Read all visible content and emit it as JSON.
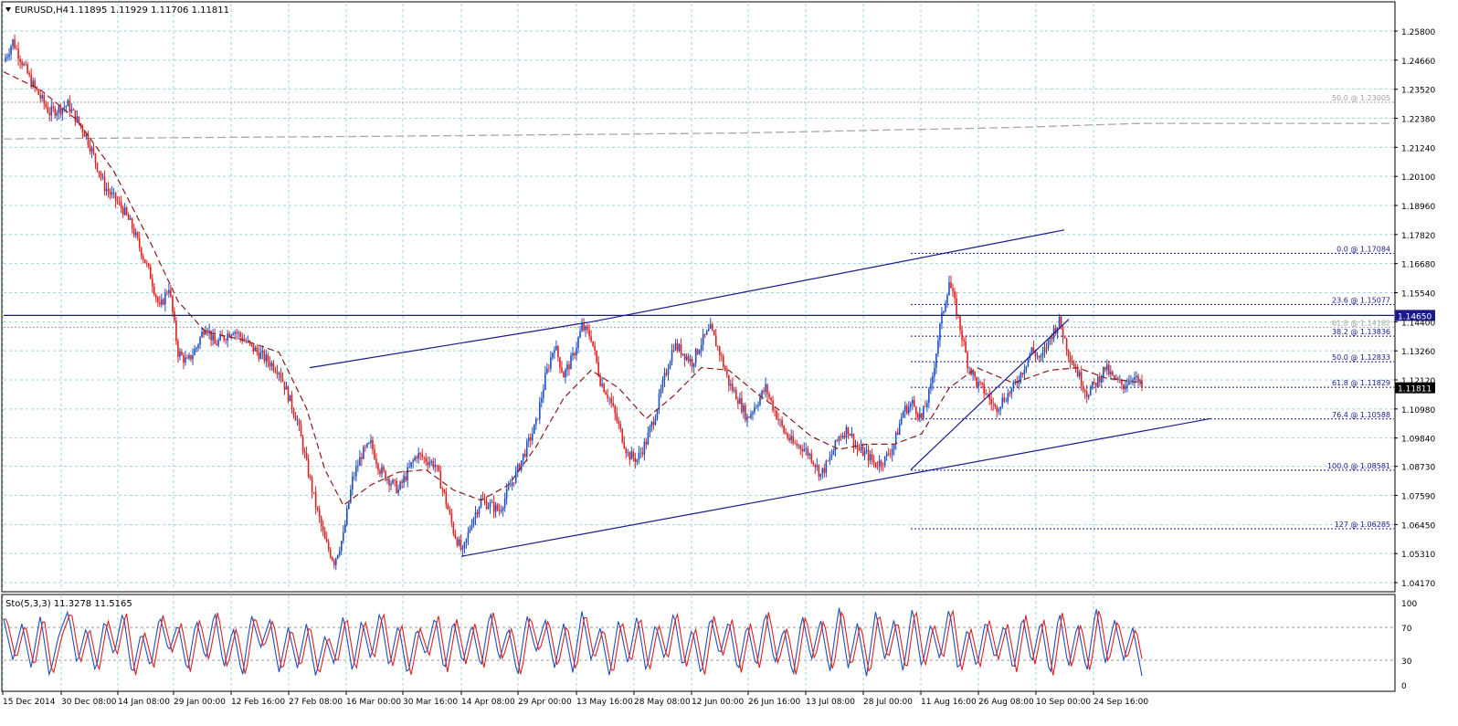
{
  "header": {
    "symbol": "EURUSD,H4",
    "ohlc": "1.11895 1.11929 1.11706 1.11811"
  },
  "indicator": {
    "label": "Sto(5,3,3) 11.3278 11.5165",
    "levels": [
      "100",
      "70",
      "30",
      "0"
    ]
  },
  "colors": {
    "background": "#ffffff",
    "grid": "#9fd4dc",
    "axis": "#000000",
    "bull": "#1f4fbf",
    "bear": "#e02020",
    "ma": "#8b1a1a",
    "trendline": "#1a1a8c",
    "fib": "#1a1a8c",
    "fib_grey": "#a0a0a0",
    "price_label_bg": "#000000",
    "resistance_label_bg": "#1a1a8c"
  },
  "chart_data": {
    "type": "candlestick",
    "title": "EURUSD,H4",
    "ylim": [
      1.0417,
      1.258
    ],
    "y_ticks": [
      "1.25800",
      "1.24660",
      "1.23520",
      "1.22380",
      "1.21240",
      "1.20100",
      "1.18960",
      "1.17820",
      "1.16680",
      "1.15540",
      "1.14400",
      "1.13260",
      "1.12120",
      "1.10980",
      "1.09840",
      "1.08730",
      "1.07590",
      "1.06450",
      "1.05310",
      "1.04170"
    ],
    "x_ticks": [
      "15 Dec 2014",
      "30 Dec 08:00",
      "14 Jan 08:00",
      "29 Jan 00:00",
      "12 Feb 16:00",
      "27 Feb 08:00",
      "16 Mar 00:00",
      "30 Mar 16:00",
      "14 Apr 08:00",
      "29 Apr 00:00",
      "13 May 16:00",
      "28 May 08:00",
      "12 Jun 00:00",
      "26 Jun 16:00",
      "13 Jul 08:00",
      "28 Jul 00:00",
      "11 Aug 16:00",
      "26 Aug 08:00",
      "10 Sep 00:00",
      "24 Sep 16:00"
    ],
    "current_price": "1.11811",
    "resistance_level": "1.14650",
    "price_path": [
      [
        0,
        1.246
      ],
      [
        1,
        1.254
      ],
      [
        3,
        1.238
      ],
      [
        5,
        1.226
      ],
      [
        7,
        1.229
      ],
      [
        9,
        1.217
      ],
      [
        11,
        1.197
      ],
      [
        13,
        1.188
      ],
      [
        14,
        1.181
      ],
      [
        16,
        1.162
      ],
      [
        17,
        1.149
      ],
      [
        18,
        1.158
      ],
      [
        19,
        1.132
      ],
      [
        20,
        1.128
      ],
      [
        21,
        1.134
      ],
      [
        22,
        1.143
      ],
      [
        23,
        1.135
      ],
      [
        25,
        1.141
      ],
      [
        27,
        1.134
      ],
      [
        29,
        1.128
      ],
      [
        30,
        1.125
      ],
      [
        31,
        1.115
      ],
      [
        32,
        1.105
      ],
      [
        33,
        1.088
      ],
      [
        34,
        1.072
      ],
      [
        35,
        1.058
      ],
      [
        36,
        1.05
      ],
      [
        37,
        1.06
      ],
      [
        38,
        1.082
      ],
      [
        39,
        1.092
      ],
      [
        40,
        1.096
      ],
      [
        41,
        1.086
      ],
      [
        43,
        1.078
      ],
      [
        45,
        1.092
      ],
      [
        47,
        1.088
      ],
      [
        48,
        1.076
      ],
      [
        49,
        1.062
      ],
      [
        50,
        1.053
      ],
      [
        51,
        1.066
      ],
      [
        52,
        1.074
      ],
      [
        54,
        1.07
      ],
      [
        56,
        1.086
      ],
      [
        58,
        1.104
      ],
      [
        59,
        1.122
      ],
      [
        60,
        1.135
      ],
      [
        61,
        1.123
      ],
      [
        62,
        1.13
      ],
      [
        63,
        1.142
      ],
      [
        64,
        1.138
      ],
      [
        65,
        1.121
      ],
      [
        66,
        1.114
      ],
      [
        67,
        1.103
      ],
      [
        68,
        1.092
      ],
      [
        69,
        1.09
      ],
      [
        70,
        1.097
      ],
      [
        71,
        1.108
      ],
      [
        72,
        1.122
      ],
      [
        73,
        1.135
      ],
      [
        74,
        1.132
      ],
      [
        75,
        1.128
      ],
      [
        76,
        1.136
      ],
      [
        77,
        1.141
      ],
      [
        78,
        1.132
      ],
      [
        79,
        1.12
      ],
      [
        80,
        1.114
      ],
      [
        81,
        1.106
      ],
      [
        82,
        1.112
      ],
      [
        83,
        1.118
      ],
      [
        84,
        1.109
      ],
      [
        85,
        1.101
      ],
      [
        86,
        1.096
      ],
      [
        87,
        1.095
      ],
      [
        88,
        1.091
      ],
      [
        89,
        1.084
      ],
      [
        90,
        1.09
      ],
      [
        91,
        1.099
      ],
      [
        92,
        1.102
      ],
      [
        93,
        1.094
      ],
      [
        94,
        1.092
      ],
      [
        95,
        1.088
      ],
      [
        96,
        1.09
      ],
      [
        97,
        1.096
      ],
      [
        98,
        1.109
      ],
      [
        99,
        1.112
      ],
      [
        100,
        1.106
      ],
      [
        101,
        1.118
      ],
      [
        102,
        1.142
      ],
      [
        103,
        1.16
      ],
      [
        104,
        1.145
      ],
      [
        105,
        1.128
      ],
      [
        106,
        1.12
      ],
      [
        107,
        1.116
      ],
      [
        108,
        1.11
      ],
      [
        109,
        1.114
      ],
      [
        110,
        1.118
      ],
      [
        111,
        1.125
      ],
      [
        112,
        1.133
      ],
      [
        113,
        1.129
      ],
      [
        114,
        1.138
      ],
      [
        115,
        1.144
      ],
      [
        116,
        1.132
      ],
      [
        117,
        1.124
      ],
      [
        118,
        1.116
      ],
      [
        119,
        1.12
      ],
      [
        120,
        1.126
      ],
      [
        121,
        1.121
      ],
      [
        122,
        1.119
      ],
      [
        123,
        1.123
      ],
      [
        124,
        1.1181
      ]
    ],
    "ma_path": [
      [
        0,
        1.242
      ],
      [
        4,
        1.235
      ],
      [
        8,
        1.223
      ],
      [
        12,
        1.203
      ],
      [
        16,
        1.175
      ],
      [
        19,
        1.152
      ],
      [
        22,
        1.14
      ],
      [
        26,
        1.137
      ],
      [
        30,
        1.132
      ],
      [
        33,
        1.11
      ],
      [
        35,
        1.086
      ],
      [
        37,
        1.072
      ],
      [
        40,
        1.08
      ],
      [
        43,
        1.085
      ],
      [
        46,
        1.086
      ],
      [
        49,
        1.078
      ],
      [
        52,
        1.074
      ],
      [
        55,
        1.08
      ],
      [
        58,
        1.095
      ],
      [
        61,
        1.114
      ],
      [
        64,
        1.125
      ],
      [
        67,
        1.118
      ],
      [
        70,
        1.106
      ],
      [
        73,
        1.115
      ],
      [
        76,
        1.126
      ],
      [
        79,
        1.125
      ],
      [
        82,
        1.116
      ],
      [
        85,
        1.108
      ],
      [
        88,
        1.099
      ],
      [
        91,
        1.094
      ],
      [
        94,
        1.096
      ],
      [
        97,
        1.096
      ],
      [
        100,
        1.1
      ],
      [
        103,
        1.118
      ],
      [
        106,
        1.126
      ],
      [
        110,
        1.12
      ],
      [
        114,
        1.125
      ],
      [
        117,
        1.126
      ],
      [
        120,
        1.122
      ],
      [
        124,
        1.12
      ]
    ],
    "long_ma": [
      [
        0,
        1.2157
      ],
      [
        40,
        1.2167
      ],
      [
        80,
        1.218
      ],
      [
        110,
        1.2202
      ],
      [
        124,
        1.2218
      ]
    ],
    "trendlines": [
      {
        "from": [
          27,
          1.126
        ],
        "to": [
          52,
          1.144
        ]
      },
      {
        "from": [
          41,
          1.052
        ],
        "to": [
          110,
          1.106
        ]
      },
      {
        "from": [
          81,
          1.086
        ],
        "to": [
          96,
          1.145
        ]
      },
      {
        "from": [
          52,
          1.144
        ],
        "to": [
          95,
          1.18
        ]
      }
    ],
    "fib_levels": [
      {
        "label": "0.0 @ 1.17084",
        "value": 1.17084
      },
      {
        "label": "23.6 @ 1.15077",
        "value": 1.15077
      },
      {
        "label": "38.2 @ 1.13836",
        "value": 1.13836
      },
      {
        "label": "50.0 @ 1.12833",
        "value": 1.12833
      },
      {
        "label": "61.8 @ 1.11829",
        "value": 1.11829
      },
      {
        "label": "76.4 @ 1.10588",
        "value": 1.10588
      },
      {
        "label": "100.0 @ 1.08581",
        "value": 1.08581
      },
      {
        "label": "127 @ 1.06285",
        "value": 1.06285
      }
    ],
    "fib_grey_levels": [
      {
        "label": "50.0 @ 1.23005",
        "value": 1.23005
      },
      {
        "label": "61.8 @ 1.14182",
        "value": 1.14182
      }
    ],
    "stochastic_path": [
      [
        0,
        80
      ],
      [
        1,
        30
      ],
      [
        2,
        75
      ],
      [
        3,
        20
      ],
      [
        4,
        85
      ],
      [
        5,
        10
      ],
      [
        6,
        60
      ],
      [
        7,
        90
      ],
      [
        8,
        25
      ],
      [
        9,
        70
      ],
      [
        10,
        15
      ],
      [
        11,
        80
      ],
      [
        12,
        35
      ],
      [
        13,
        90
      ],
      [
        14,
        10
      ],
      [
        15,
        65
      ],
      [
        16,
        20
      ],
      [
        17,
        85
      ],
      [
        18,
        40
      ],
      [
        19,
        75
      ],
      [
        20,
        15
      ],
      [
        21,
        80
      ],
      [
        22,
        30
      ],
      [
        23,
        90
      ],
      [
        24,
        20
      ],
      [
        25,
        70
      ],
      [
        26,
        10
      ],
      [
        27,
        85
      ],
      [
        28,
        45
      ],
      [
        29,
        80
      ],
      [
        30,
        15
      ],
      [
        31,
        70
      ],
      [
        32,
        20
      ],
      [
        33,
        75
      ],
      [
        34,
        10
      ],
      [
        35,
        60
      ],
      [
        36,
        25
      ],
      [
        37,
        85
      ],
      [
        38,
        15
      ],
      [
        39,
        80
      ],
      [
        40,
        30
      ],
      [
        41,
        90
      ],
      [
        42,
        20
      ],
      [
        43,
        75
      ],
      [
        44,
        10
      ],
      [
        45,
        70
      ],
      [
        46,
        35
      ],
      [
        47,
        85
      ],
      [
        48,
        15
      ],
      [
        49,
        80
      ],
      [
        50,
        25
      ],
      [
        51,
        75
      ],
      [
        52,
        20
      ],
      [
        53,
        90
      ],
      [
        54,
        30
      ],
      [
        55,
        70
      ],
      [
        56,
        10
      ],
      [
        57,
        85
      ],
      [
        58,
        40
      ],
      [
        59,
        80
      ],
      [
        60,
        20
      ],
      [
        61,
        75
      ],
      [
        62,
        15
      ],
      [
        63,
        90
      ],
      [
        64,
        30
      ],
      [
        65,
        70
      ],
      [
        66,
        10
      ],
      [
        67,
        80
      ],
      [
        68,
        25
      ],
      [
        69,
        85
      ],
      [
        70,
        15
      ],
      [
        71,
        75
      ],
      [
        72,
        30
      ],
      [
        73,
        90
      ],
      [
        74,
        20
      ],
      [
        75,
        70
      ],
      [
        76,
        10
      ],
      [
        77,
        85
      ],
      [
        78,
        35
      ],
      [
        79,
        80
      ],
      [
        80,
        15
      ],
      [
        81,
        75
      ],
      [
        82,
        20
      ],
      [
        83,
        90
      ],
      [
        84,
        25
      ],
      [
        85,
        70
      ],
      [
        86,
        10
      ],
      [
        87,
        85
      ],
      [
        88,
        30
      ],
      [
        89,
        80
      ],
      [
        90,
        15
      ],
      [
        91,
        95
      ],
      [
        92,
        20
      ],
      [
        93,
        75
      ],
      [
        94,
        10
      ],
      [
        95,
        90
      ],
      [
        96,
        30
      ],
      [
        97,
        80
      ],
      [
        98,
        15
      ],
      [
        99,
        95
      ],
      [
        100,
        20
      ],
      [
        101,
        75
      ],
      [
        102,
        30
      ],
      [
        103,
        95
      ],
      [
        104,
        15
      ],
      [
        105,
        70
      ],
      [
        106,
        20
      ],
      [
        107,
        80
      ],
      [
        108,
        30
      ],
      [
        109,
        75
      ],
      [
        110,
        15
      ],
      [
        111,
        85
      ],
      [
        112,
        25
      ],
      [
        113,
        80
      ],
      [
        114,
        10
      ],
      [
        115,
        90
      ],
      [
        116,
        20
      ],
      [
        117,
        75
      ],
      [
        118,
        15
      ],
      [
        119,
        95
      ],
      [
        120,
        25
      ],
      [
        121,
        80
      ],
      [
        122,
        30
      ],
      [
        123,
        70
      ],
      [
        124,
        11
      ]
    ]
  }
}
